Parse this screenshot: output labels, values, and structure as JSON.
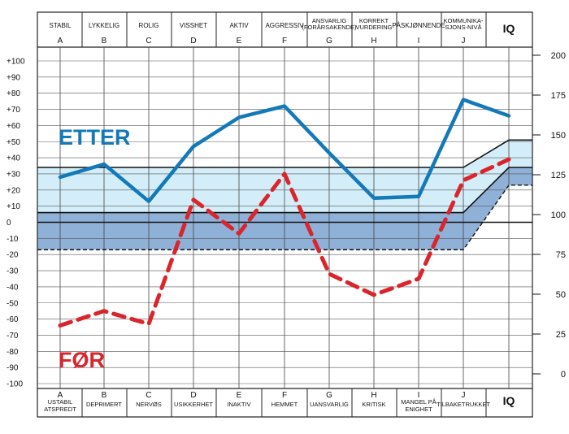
{
  "chart_data": {
    "type": "line",
    "categories": [
      "A",
      "B",
      "C",
      "D",
      "E",
      "F",
      "G",
      "H",
      "I",
      "J",
      "IQ"
    ],
    "top_labels": [
      [
        "STABIL"
      ],
      [
        "LYKKELIG"
      ],
      [
        "ROLIG"
      ],
      [
        "VISSHET"
      ],
      [
        "AKTIV"
      ],
      [
        "AGGRESSIV"
      ],
      [
        "ANSVARLIG",
        "(FORÅRSAKENDE)"
      ],
      [
        "KORREKT",
        "VURDERING"
      ],
      [
        "PÅSKJØNNENDE"
      ],
      [
        "KOMMUNIKA-",
        "SJONS-NIVÅ"
      ],
      []
    ],
    "bottom_labels": [
      [
        "USTABIL",
        "ATSPREDT"
      ],
      [
        "DEPRIMERT"
      ],
      [
        "NERVØS"
      ],
      [
        "USIKKERHET"
      ],
      [
        "INAKTIV"
      ],
      [
        "HEMMET"
      ],
      [
        "UANSVARLIG"
      ],
      [
        "KRITISK"
      ],
      [
        "MANGEL PÅ",
        "ENIGHET"
      ],
      [
        "TILBAKETRUKKET"
      ],
      []
    ],
    "y_left": {
      "min": -100,
      "max": 100,
      "step": 10
    },
    "y_right": {
      "ticks": [
        0,
        25,
        50,
        75,
        100,
        125,
        150,
        175,
        200
      ]
    },
    "series": [
      {
        "name": "ETTER",
        "color": "#1479b8",
        "style": "solid",
        "values": [
          28,
          36,
          13,
          47,
          65,
          72,
          43,
          15,
          16,
          76,
          66
        ]
      },
      {
        "name": "FØR",
        "color": "#d9252b",
        "style": "dashed",
        "values": [
          -64,
          -55,
          -63,
          14,
          -7,
          30,
          -32,
          -45,
          -35,
          26,
          39
        ]
      }
    ],
    "bands": {
      "light_upper": 34,
      "mid": 6,
      "lower": -17,
      "iq_levels": [
        51,
        34,
        23
      ],
      "zero": 0
    },
    "colors": {
      "band_light": "#d4eef9",
      "band_dark": "#8fb1d7",
      "grid": "#333333",
      "etter": "#1479b8",
      "for": "#d9252b"
    }
  }
}
